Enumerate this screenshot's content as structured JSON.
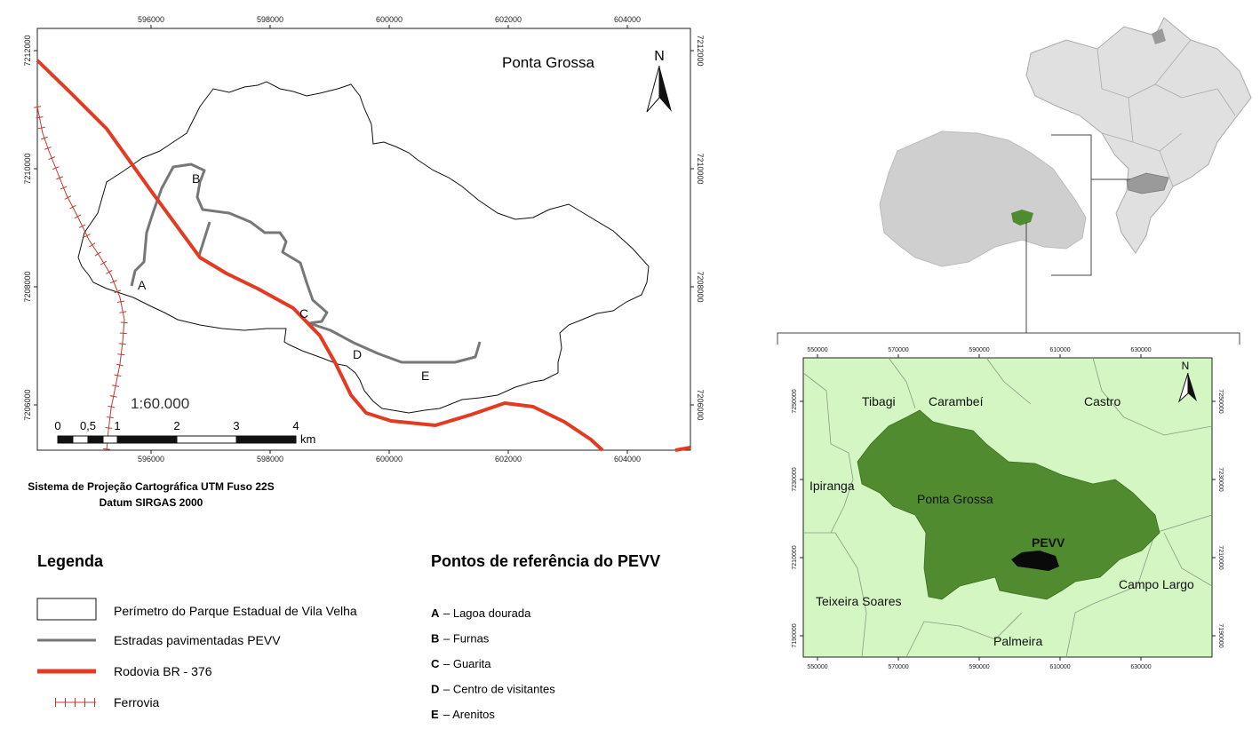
{
  "main_map": {
    "title": "Ponta Grossa",
    "north": "N",
    "x_ticks": [
      596000,
      598000,
      600000,
      602000,
      604000
    ],
    "y_ticks": [
      7212000,
      7210000,
      7208000,
      7206000
    ],
    "points": [
      "A",
      "B",
      "C",
      "D",
      "E"
    ],
    "scale_ratio": "1:60.000",
    "scale_labels": [
      "0",
      "0,5",
      "1",
      "2",
      "3",
      "4"
    ],
    "scale_unit": "km"
  },
  "projection": [
    "Sistema de Projeção Cartográfica UTM Fuso 22S",
    "Datum SIRGAS 2000"
  ],
  "legend": {
    "title": "Legenda",
    "items": [
      "Perímetro do Parque Estadual de Vila Velha",
      "Estradas pavimentadas PEVV",
      "Rodovia BR - 376",
      "Ferrovia"
    ]
  },
  "reference_points": {
    "title": "Pontos de referência do PEVV",
    "items": [
      {
        "letter": "A",
        "text": "– Lagoa dourada"
      },
      {
        "letter": "B",
        "text": "– Furnas"
      },
      {
        "letter": "C",
        "text": "– Guarita"
      },
      {
        "letter": "D",
        "text": "– Centro de visitantes"
      },
      {
        "letter": "E",
        "text": "– Arenitos"
      }
    ]
  },
  "inset": {
    "north": "N",
    "x_ticks": [
      550000,
      570000,
      590000,
      610000,
      630000
    ],
    "y_ticks": [
      7250000,
      7230000,
      7210000,
      7190000
    ],
    "labels": [
      "Tibagi",
      "Carambeí",
      "Castro",
      "Ipiranga",
      "Ponta Grossa",
      "PEVV",
      "Campo Largo",
      "Teixeira Soares",
      "Palmeira"
    ]
  }
}
